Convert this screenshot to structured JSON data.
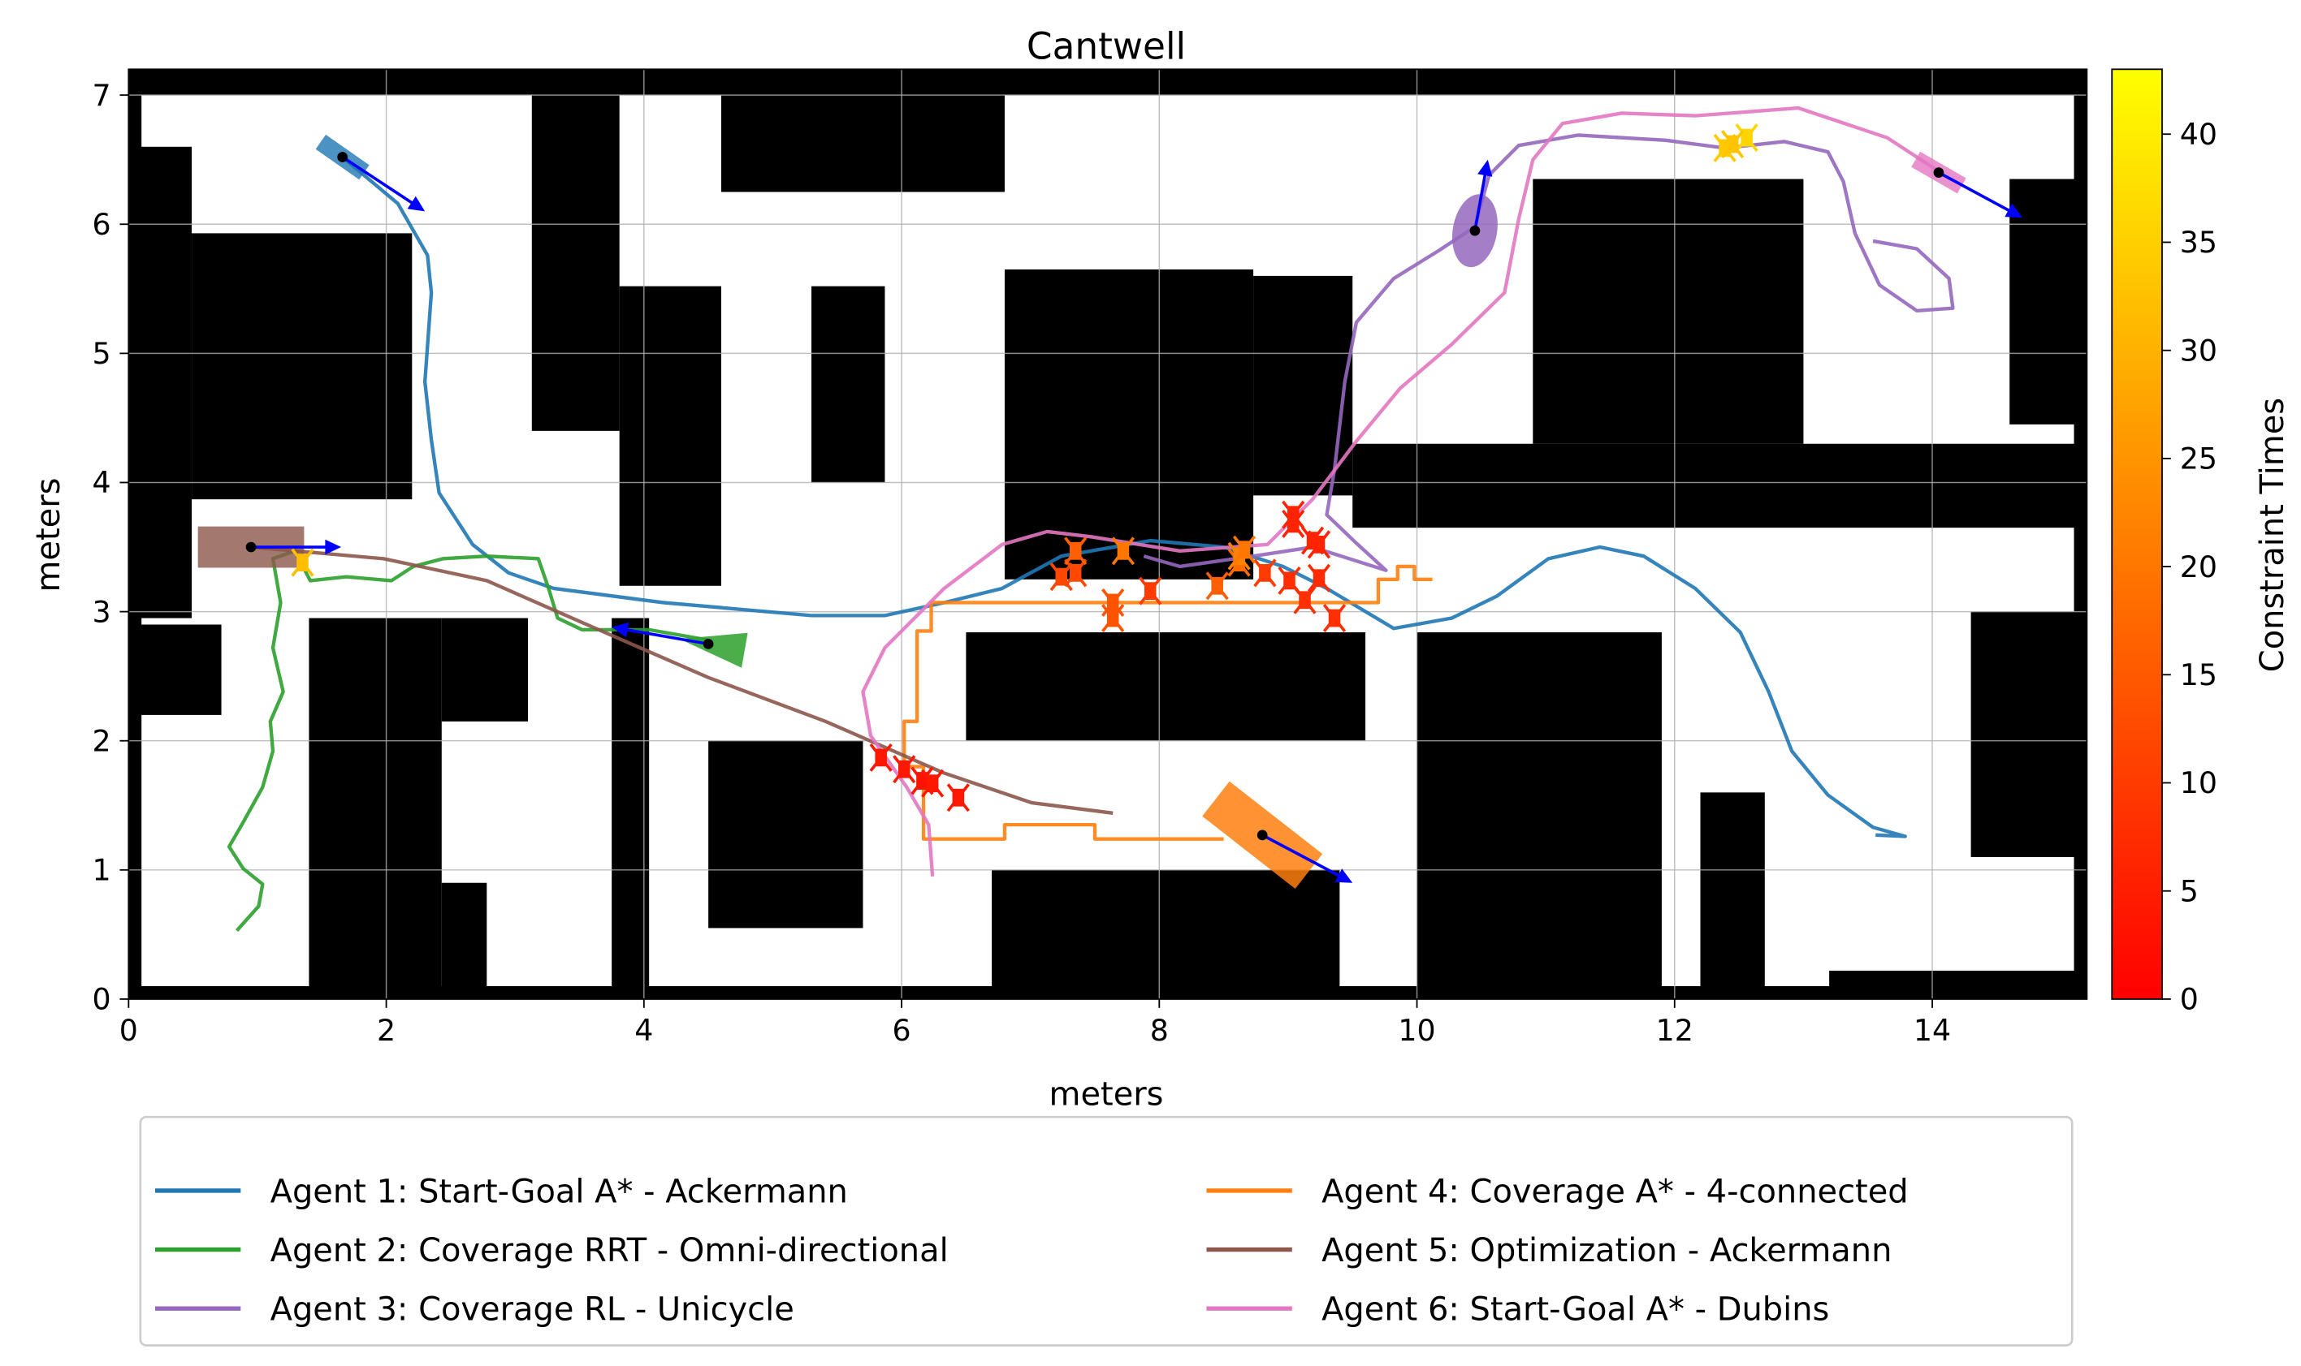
{
  "chart_data": {
    "type": "line",
    "title": "Cantwell",
    "xlabel": "meters",
    "ylabel": "meters",
    "xlim": [
      0,
      15.2
    ],
    "ylim": [
      0,
      7.2
    ],
    "xticks": [
      "0",
      "2",
      "4",
      "6",
      "8",
      "10",
      "12",
      "14"
    ],
    "yticks": [
      "0",
      "1",
      "2",
      "3",
      "4",
      "5",
      "6",
      "7"
    ],
    "grid": true,
    "legend_placement": "bottom (below axes), 2 columns",
    "colorbar": {
      "label": "Constraint Times",
      "colormap": "autumn",
      "range": [
        0,
        43
      ],
      "ticks": [
        "0",
        "5",
        "10",
        "15",
        "20",
        "25",
        "30",
        "35",
        "40"
      ]
    },
    "obstacles_m": [
      [
        0,
        7.0,
        15.2,
        7.2
      ],
      [
        0,
        0,
        15.2,
        0.1
      ],
      [
        0,
        0,
        0.1,
        7.2
      ],
      [
        15.1,
        0,
        15.2,
        7.2
      ],
      [
        0,
        2.95,
        0.49,
        6.6
      ],
      [
        0.49,
        3.87,
        2.2,
        5.93
      ],
      [
        0,
        2.2,
        0.72,
        2.9
      ],
      [
        1.4,
        0,
        2.43,
        2.95
      ],
      [
        2.43,
        2.15,
        3.1,
        2.95
      ],
      [
        2.43,
        0,
        2.78,
        0.9
      ],
      [
        3.13,
        4.4,
        3.81,
        7.2
      ],
      [
        3.81,
        3.2,
        4.6,
        5.52
      ],
      [
        3.75,
        0,
        4.04,
        2.95
      ],
      [
        4.5,
        0.55,
        5.7,
        2.0
      ],
      [
        4.6,
        6.25,
        6.8,
        7.2
      ],
      [
        5.3,
        4.0,
        5.87,
        5.52
      ],
      [
        6.8,
        3.25,
        8.73,
        5.65
      ],
      [
        6.5,
        2.0,
        9.6,
        2.84
      ],
      [
        6.7,
        0,
        9.4,
        1.0
      ],
      [
        8.73,
        3.9,
        9.5,
        5.6
      ],
      [
        10.0,
        0,
        11.9,
        2.84
      ],
      [
        12.2,
        0,
        12.7,
        1.6
      ],
      [
        10.9,
        4.3,
        13.0,
        6.35
      ],
      [
        9.5,
        3.65,
        15.2,
        4.3
      ],
      [
        14.6,
        4.45,
        15.2,
        6.35
      ],
      [
        14.3,
        1.1,
        15.2,
        3.0
      ],
      [
        13.2,
        0,
        15.2,
        0.22
      ]
    ],
    "series": [
      {
        "name": "Agent 1: Start-Goal A* - Ackermann",
        "color": "#1f77b4",
        "points": [
          [
            1.66,
            6.52
          ],
          [
            2.09,
            6.16
          ],
          [
            2.32,
            5.76
          ],
          [
            2.35,
            5.47
          ],
          [
            2.3,
            4.78
          ],
          [
            2.35,
            4.33
          ],
          [
            2.41,
            3.92
          ],
          [
            2.67,
            3.52
          ],
          [
            2.95,
            3.3
          ],
          [
            3.3,
            3.18
          ],
          [
            4.15,
            3.07
          ],
          [
            5.3,
            2.97
          ],
          [
            5.87,
            2.97
          ],
          [
            6.33,
            3.07
          ],
          [
            6.78,
            3.18
          ],
          [
            7.24,
            3.43
          ],
          [
            7.93,
            3.55
          ],
          [
            8.5,
            3.5
          ],
          [
            8.96,
            3.35
          ],
          [
            9.3,
            3.18
          ],
          [
            9.82,
            2.87
          ],
          [
            10.27,
            2.95
          ],
          [
            10.62,
            3.12
          ],
          [
            11.02,
            3.41
          ],
          [
            11.42,
            3.5
          ],
          [
            11.76,
            3.43
          ],
          [
            12.16,
            3.18
          ],
          [
            12.51,
            2.84
          ],
          [
            12.73,
            2.38
          ],
          [
            12.91,
            1.92
          ],
          [
            13.19,
            1.58
          ],
          [
            13.54,
            1.33
          ],
          [
            13.79,
            1.26
          ],
          [
            13.56,
            1.27
          ]
        ],
        "robot": {
          "shape": "rect",
          "x": 1.66,
          "y": 6.52,
          "heading_deg": -35,
          "arrow_to": [
            2.3,
            6.1
          ]
        }
      },
      {
        "name": "Agent 2: Coverage RRT - Omni-directional",
        "color": "#2ca02c",
        "points": [
          [
            0.84,
            0.53
          ],
          [
            1.01,
            0.72
          ],
          [
            1.04,
            0.89
          ],
          [
            0.89,
            1.01
          ],
          [
            0.78,
            1.18
          ],
          [
            0.89,
            1.37
          ],
          [
            1.04,
            1.64
          ],
          [
            1.12,
            1.92
          ],
          [
            1.1,
            2.15
          ],
          [
            1.2,
            2.38
          ],
          [
            1.12,
            2.72
          ],
          [
            1.18,
            3.07
          ],
          [
            1.12,
            3.41
          ],
          [
            1.29,
            3.47
          ],
          [
            1.41,
            3.24
          ],
          [
            1.69,
            3.27
          ],
          [
            2.04,
            3.24
          ],
          [
            2.21,
            3.35
          ],
          [
            2.44,
            3.41
          ],
          [
            2.78,
            3.43
          ],
          [
            3.18,
            3.41
          ],
          [
            3.26,
            3.18
          ],
          [
            3.33,
            2.95
          ],
          [
            3.52,
            2.86
          ],
          [
            4.04,
            2.86
          ],
          [
            4.5,
            2.78
          ]
        ],
        "robot": {
          "shape": "triangle",
          "x": 4.5,
          "y": 2.75,
          "heading_deg": 170,
          "arrow_to": [
            3.75,
            2.88
          ]
        }
      },
      {
        "name": "Agent 3: Coverage RL - Unicycle",
        "color": "#9467bd",
        "points": [
          [
            7.88,
            3.43
          ],
          [
            8.16,
            3.35
          ],
          [
            8.73,
            3.43
          ],
          [
            9.19,
            3.5
          ],
          [
            9.76,
            3.32
          ],
          [
            9.53,
            3.53
          ],
          [
            9.3,
            3.75
          ],
          [
            9.36,
            4.1
          ],
          [
            9.44,
            4.78
          ],
          [
            9.53,
            5.24
          ],
          [
            9.82,
            5.58
          ],
          [
            10.16,
            5.79
          ],
          [
            10.45,
            5.98
          ],
          [
            10.56,
            6.38
          ],
          [
            10.79,
            6.61
          ],
          [
            11.25,
            6.69
          ],
          [
            11.93,
            6.65
          ],
          [
            12.39,
            6.59
          ],
          [
            12.85,
            6.64
          ],
          [
            13.19,
            6.56
          ],
          [
            13.31,
            6.33
          ],
          [
            13.4,
            5.93
          ],
          [
            13.59,
            5.53
          ],
          [
            13.88,
            5.33
          ],
          [
            14.16,
            5.35
          ],
          [
            14.13,
            5.58
          ],
          [
            13.88,
            5.81
          ],
          [
            13.54,
            5.87
          ]
        ],
        "robot": {
          "shape": "blob",
          "x": 10.45,
          "y": 5.95,
          "heading_deg": 80,
          "arrow_to": [
            10.55,
            6.5
          ]
        }
      },
      {
        "name": "Agent 4: Coverage A* - 4-connected",
        "color": "#ff7f0e",
        "points": [
          [
            8.5,
            1.24
          ],
          [
            7.5,
            1.24
          ],
          [
            7.5,
            1.35
          ],
          [
            6.8,
            1.35
          ],
          [
            6.8,
            1.24
          ],
          [
            6.17,
            1.24
          ],
          [
            6.17,
            1.8
          ],
          [
            6.02,
            1.8
          ],
          [
            6.02,
            2.15
          ],
          [
            6.12,
            2.15
          ],
          [
            6.12,
            2.85
          ],
          [
            6.23,
            2.85
          ],
          [
            6.23,
            3.07
          ],
          [
            9.7,
            3.07
          ],
          [
            9.7,
            3.25
          ],
          [
            9.85,
            3.25
          ],
          [
            9.85,
            3.35
          ],
          [
            9.98,
            3.35
          ],
          [
            9.98,
            3.25
          ],
          [
            10.12,
            3.25
          ]
        ],
        "robot": {
          "shape": "rect-large",
          "x": 8.8,
          "y": 1.27,
          "heading_deg": -38,
          "arrow_to": [
            9.5,
            0.9
          ]
        }
      },
      {
        "name": "Agent 5: Optimization - Ackermann",
        "color": "#8c564b",
        "points": [
          [
            0.95,
            3.5
          ],
          [
            1.98,
            3.41
          ],
          [
            2.78,
            3.24
          ],
          [
            3.58,
            2.89
          ],
          [
            4.5,
            2.49
          ],
          [
            5.41,
            2.15
          ],
          [
            6.33,
            1.75
          ],
          [
            7.01,
            1.52
          ],
          [
            7.64,
            1.44
          ]
        ],
        "robot": {
          "shape": "rect",
          "x": 0.95,
          "y": 3.5,
          "heading_deg": 0,
          "arrow_to": [
            1.65,
            3.5
          ]
        }
      },
      {
        "name": "Agent 6: Start-Goal A* - Dubins",
        "color": "#e377c2",
        "points": [
          [
            14.05,
            6.41
          ],
          [
            13.65,
            6.67
          ],
          [
            12.96,
            6.9
          ],
          [
            12.16,
            6.84
          ],
          [
            11.59,
            6.86
          ],
          [
            11.13,
            6.78
          ],
          [
            10.9,
            6.5
          ],
          [
            10.79,
            6.04
          ],
          [
            10.68,
            5.47
          ],
          [
            10.27,
            5.07
          ],
          [
            9.87,
            4.73
          ],
          [
            9.53,
            4.32
          ],
          [
            9.19,
            3.87
          ],
          [
            8.84,
            3.52
          ],
          [
            8.16,
            3.47
          ],
          [
            7.47,
            3.58
          ],
          [
            7.13,
            3.62
          ],
          [
            6.78,
            3.52
          ],
          [
            6.33,
            3.18
          ],
          [
            5.87,
            2.72
          ],
          [
            5.7,
            2.38
          ],
          [
            5.76,
            2.04
          ],
          [
            6.04,
            1.64
          ],
          [
            6.21,
            1.35
          ],
          [
            6.24,
            0.95
          ]
        ],
        "robot": {
          "shape": "rect",
          "x": 14.05,
          "y": 6.4,
          "heading_deg": -30,
          "arrow_to": [
            14.7,
            6.05
          ]
        }
      }
    ],
    "constraints": [
      [
        5.84,
        1.87,
        4
      ],
      [
        6.02,
        1.78,
        4
      ],
      [
        6.16,
        1.69,
        3
      ],
      [
        6.24,
        1.67,
        4
      ],
      [
        6.44,
        1.56,
        4
      ],
      [
        9.04,
        3.75,
        6
      ],
      [
        9.04,
        3.68,
        6
      ],
      [
        9.19,
        3.55,
        6
      ],
      [
        9.24,
        3.52,
        6
      ],
      [
        9.36,
        2.95,
        8
      ],
      [
        9.13,
        3.09,
        8
      ],
      [
        9.01,
        3.24,
        8
      ],
      [
        9.24,
        3.26,
        7
      ],
      [
        7.24,
        3.27,
        12
      ],
      [
        7.35,
        3.3,
        12
      ],
      [
        7.64,
        3.07,
        14
      ],
      [
        7.64,
        2.95,
        14
      ],
      [
        7.93,
        3.16,
        10
      ],
      [
        8.45,
        3.2,
        16
      ],
      [
        8.62,
        3.38,
        18
      ],
      [
        8.82,
        3.3,
        10
      ],
      [
        7.35,
        3.47,
        16
      ],
      [
        7.72,
        3.47,
        20
      ],
      [
        8.62,
        3.43,
        22
      ],
      [
        8.66,
        3.48,
        20
      ],
      [
        1.35,
        3.38,
        32
      ],
      [
        12.39,
        6.59,
        34
      ],
      [
        12.56,
        6.67,
        36
      ],
      [
        12.45,
        6.62,
        33
      ]
    ]
  }
}
